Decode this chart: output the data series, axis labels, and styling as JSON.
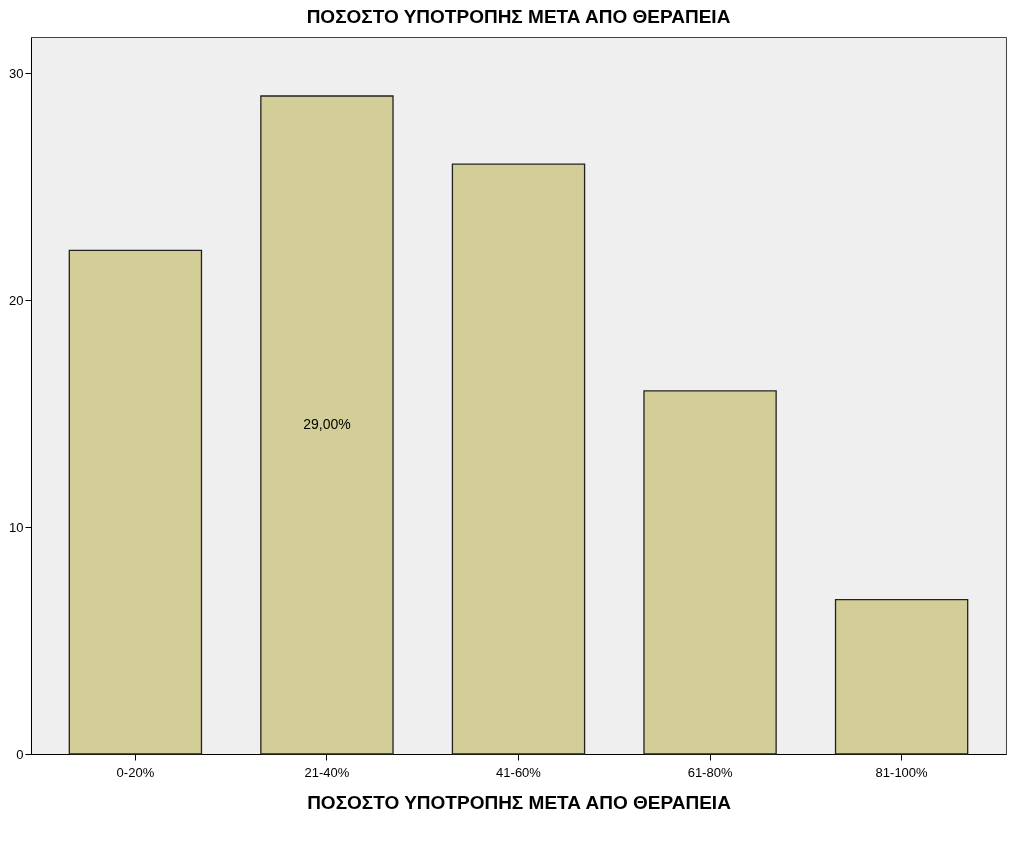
{
  "chart_data": {
    "type": "bar",
    "title": "ΠΟΣΟΣΤΟ ΥΠΟΤΡΟΠΗΣ ΜΕΤΑ ΑΠΟ ΘΕΡΑΠΕΙΑ",
    "xlabel": "ΠΟΣΟΣΤΟ ΥΠΟΤΡΟΠΗΣ ΜΕΤΑ ΑΠΟ ΘΕΡΑΠΕΙΑ",
    "categories": [
      "0-20%",
      "21-40%",
      "41-60%",
      "61-80%",
      "81-100%"
    ],
    "values": [
      22.2,
      29,
      26,
      16,
      6.8
    ],
    "value_labels": [
      null,
      "29,00%",
      null,
      null,
      null
    ],
    "color": "#d3ce97",
    "ylim": [
      0,
      31.6
    ],
    "yticks": [
      0,
      10,
      20,
      30
    ],
    "grid": false
  }
}
